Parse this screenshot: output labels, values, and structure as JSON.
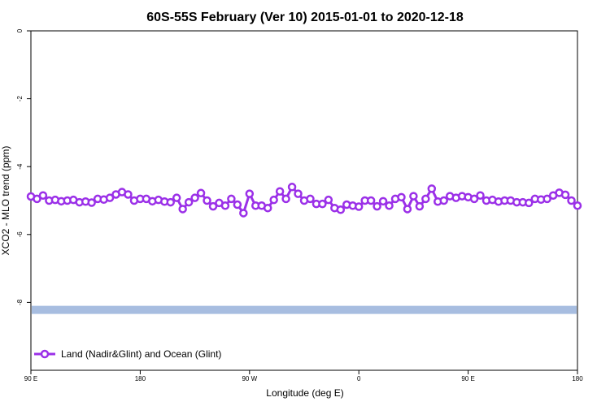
{
  "chart_data": {
    "type": "line",
    "title": "60S-55S February (Ver 10)   2015-01-01 to 2020-12-18",
    "xlabel": "Longitude (deg E)",
    "ylabel": "XCO2 - MLO trend (ppm)",
    "ylim": [
      -10,
      0
    ],
    "yticks": [
      0,
      -2,
      -4,
      -6,
      -8
    ],
    "ytick_labels": [
      "0",
      "-2",
      "-4",
      "-6",
      "-8"
    ],
    "xticks": [
      0,
      90,
      180,
      270,
      360,
      450
    ],
    "xtick_labels": [
      "90 E",
      "180",
      "90 W",
      "0",
      "90 E",
      "180"
    ],
    "xlim": [
      0,
      450
    ],
    "grid": false,
    "legend_position": "bottom-left",
    "band": {
      "y": -8.22,
      "color": "#a7bde0"
    },
    "series": [
      {
        "name": "Land (Nadir&Glint) and Ocean (Glint)",
        "color": "#9b30e8",
        "x": [
          0,
          5,
          10,
          15,
          20,
          25,
          30,
          35,
          40,
          45,
          50,
          55,
          60,
          65,
          70,
          75,
          80,
          85,
          90,
          95,
          100,
          105,
          110,
          115,
          120,
          125,
          130,
          135,
          140,
          145,
          150,
          155,
          160,
          165,
          170,
          175,
          180,
          185,
          190,
          195,
          200,
          205,
          210,
          215,
          220,
          225,
          230,
          235,
          240,
          245,
          250,
          255,
          260,
          265,
          270,
          275,
          280,
          285,
          290,
          295,
          300,
          305,
          310,
          315,
          320,
          325,
          330,
          335,
          340,
          345,
          350,
          355,
          360,
          365,
          370,
          375,
          380,
          385,
          390,
          395,
          400,
          405,
          410,
          415,
          420,
          425,
          430,
          435,
          440,
          445,
          450
        ],
        "values": [
          -4.88,
          -4.95,
          -4.85,
          -5.0,
          -4.98,
          -5.02,
          -5.0,
          -4.98,
          -5.05,
          -5.03,
          -5.06,
          -4.95,
          -4.97,
          -4.92,
          -4.82,
          -4.75,
          -4.82,
          -5.0,
          -4.95,
          -4.95,
          -5.02,
          -4.98,
          -5.03,
          -5.05,
          -4.92,
          -5.25,
          -5.05,
          -4.92,
          -4.78,
          -5.0,
          -5.17,
          -5.07,
          -5.15,
          -4.95,
          -5.12,
          -5.37,
          -4.8,
          -5.15,
          -5.15,
          -5.22,
          -4.98,
          -4.73,
          -4.95,
          -4.6,
          -4.8,
          -5.0,
          -4.95,
          -5.1,
          -5.1,
          -4.98,
          -5.22,
          -5.27,
          -5.12,
          -5.15,
          -5.18,
          -5.0,
          -5.0,
          -5.17,
          -5.02,
          -5.15,
          -4.95,
          -4.9,
          -5.25,
          -4.87,
          -5.17,
          -4.95,
          -4.65,
          -5.03,
          -5.0,
          -4.87,
          -4.92,
          -4.87,
          -4.9,
          -4.95,
          -4.85,
          -5.0,
          -4.98,
          -5.03,
          -5.0,
          -5.0,
          -5.05,
          -5.05,
          -5.07,
          -4.95,
          -4.97,
          -4.95,
          -4.85,
          -4.77,
          -4.83,
          -5.0,
          -5.15
        ]
      }
    ]
  }
}
